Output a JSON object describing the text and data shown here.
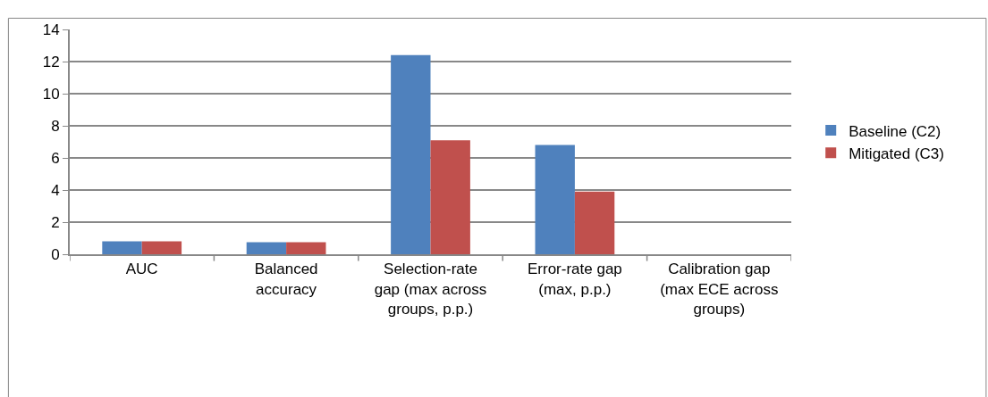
{
  "chart_data": {
    "type": "bar",
    "categories": [
      "AUC",
      "Balanced accuracy",
      "Selection-rate gap (max across groups, p.p.)",
      "Error-rate gap (max, p.p.)",
      "Calibration gap (max ECE across groups)"
    ],
    "series": [
      {
        "name": "Baseline (C2)",
        "color": "#4f81bd",
        "values": [
          0.8,
          0.75,
          12.4,
          6.8,
          0
        ]
      },
      {
        "name": "Mitigated (C3)",
        "color": "#c0504d",
        "values": [
          0.8,
          0.75,
          7.1,
          3.9,
          0
        ]
      }
    ],
    "ylim": [
      0,
      14
    ],
    "yticks": [
      0,
      2,
      4,
      6,
      8,
      10,
      12,
      14
    ],
    "grid": "y",
    "legend": "right"
  }
}
